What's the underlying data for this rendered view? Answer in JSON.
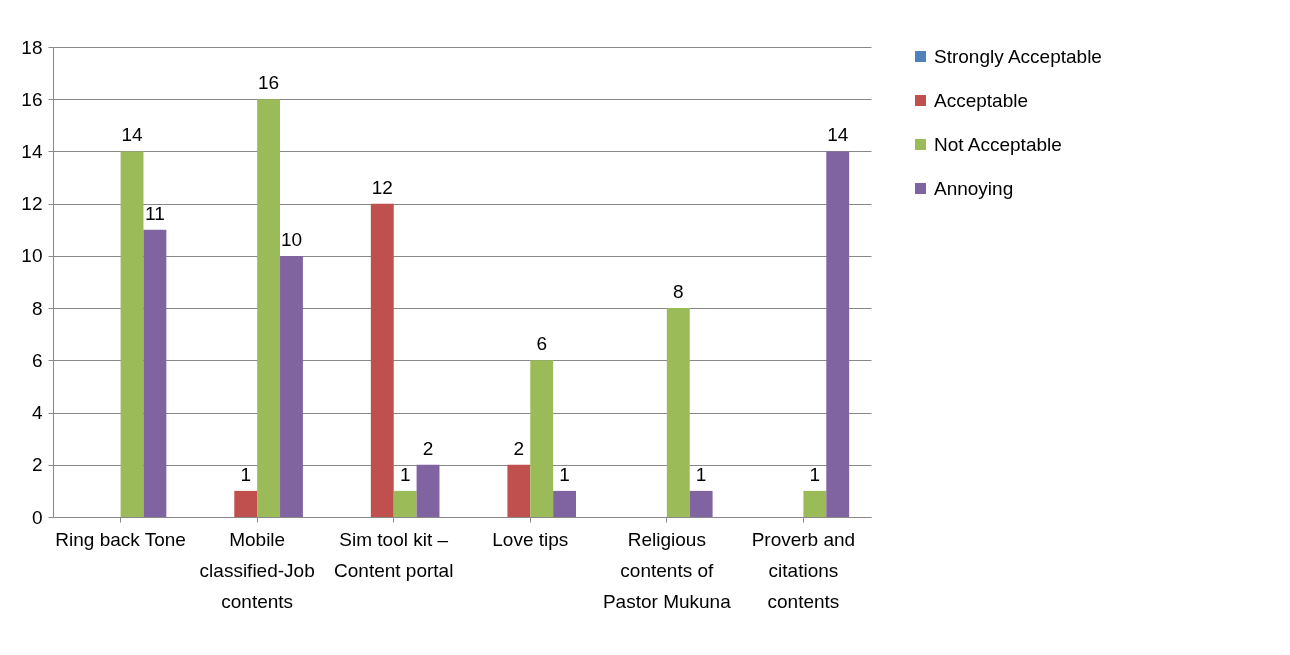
{
  "chart_data": {
    "type": "bar",
    "categories": [
      "Ring back Tone",
      "Mobile classified-Job contents",
      "Sim tool kit – Content portal",
      "Love tips",
      "Religious contents of Pastor Mukuna",
      "Proverb and citations contents"
    ],
    "series": [
      {
        "name": "Strongly Acceptable",
        "color": "#4f81bd",
        "values": [
          null,
          null,
          null,
          null,
          null,
          null
        ]
      },
      {
        "name": "Acceptable",
        "color": "#c0504d",
        "values": [
          null,
          1,
          12,
          2,
          null,
          null
        ]
      },
      {
        "name": "Not Acceptable",
        "color": "#9bbb59",
        "values": [
          14,
          16,
          1,
          6,
          8,
          1
        ]
      },
      {
        "name": "Annoying",
        "color": "#8064a2",
        "values": [
          11,
          10,
          2,
          1,
          1,
          14
        ]
      }
    ],
    "ylim": [
      0,
      18
    ],
    "yticks": [
      0,
      2,
      4,
      6,
      8,
      10,
      12,
      14,
      16,
      18
    ],
    "grid": "y",
    "legend": "right",
    "data_labels": true
  }
}
